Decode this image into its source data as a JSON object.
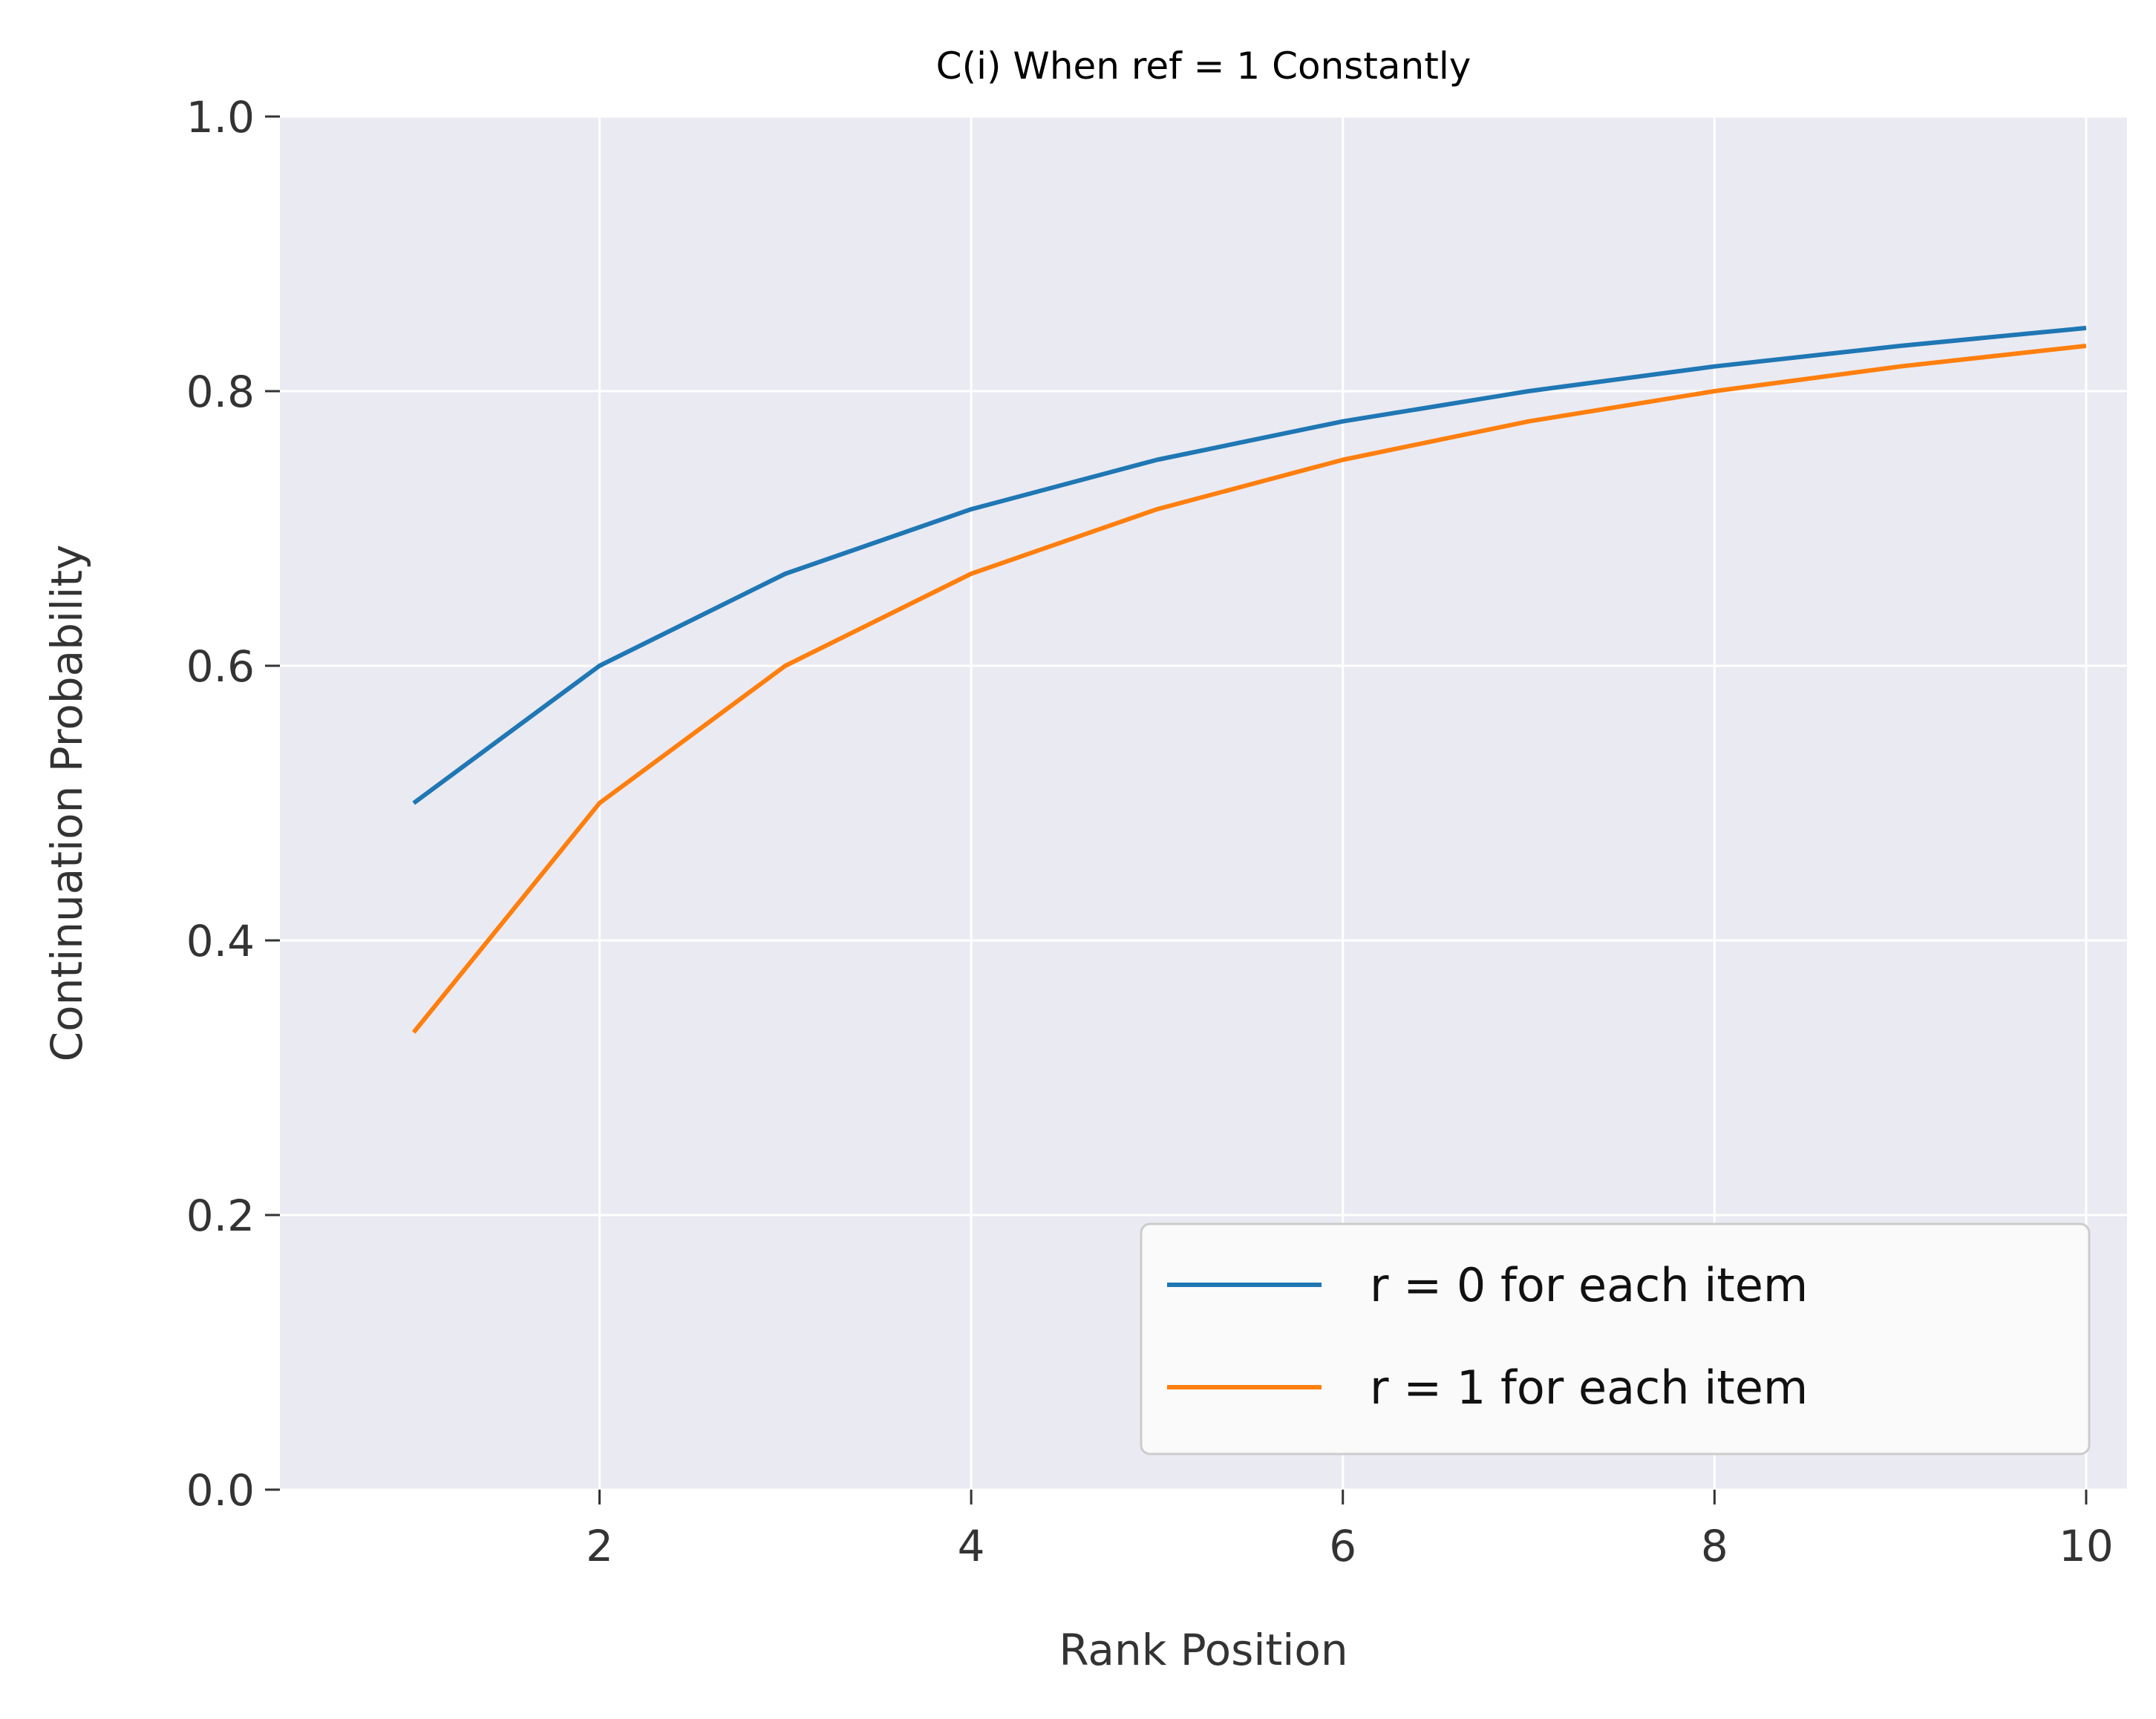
{
  "chart_data": {
    "type": "line",
    "title": "C(i) When ref = 1 Constantly",
    "xlabel": "Rank Position",
    "ylabel": "Continuation Probability",
    "xlim": [
      0.28,
      10.22
    ],
    "ylim": [
      0.0,
      1.0
    ],
    "x_ticks": [
      2,
      4,
      6,
      8,
      10
    ],
    "x_tick_labels": [
      "2",
      "4",
      "6",
      "8",
      "10"
    ],
    "y_ticks": [
      0.0,
      0.2,
      0.4,
      0.6,
      0.8,
      1.0
    ],
    "y_tick_labels": [
      "0.0",
      "0.2",
      "0.4",
      "0.6",
      "0.8",
      "1.0"
    ],
    "grid": true,
    "legend_position": "bottom-right",
    "x": [
      1,
      2,
      3,
      4,
      5,
      6,
      7,
      8,
      9,
      10
    ],
    "series": [
      {
        "name": "r = 0 for each item",
        "color": "#1f77b4",
        "values": [
          0.5,
          0.6,
          0.667,
          0.714,
          0.75,
          0.778,
          0.8,
          0.818,
          0.833,
          0.846
        ]
      },
      {
        "name": "r = 1 for each item",
        "color": "#ff7f0e",
        "values": [
          0.333,
          0.5,
          0.6,
          0.667,
          0.714,
          0.75,
          0.778,
          0.8,
          0.818,
          0.833
        ]
      }
    ],
    "colors": {
      "plot_background": "#eaeaf2",
      "grid": "#ffffff",
      "tick_text": "#333333"
    }
  }
}
